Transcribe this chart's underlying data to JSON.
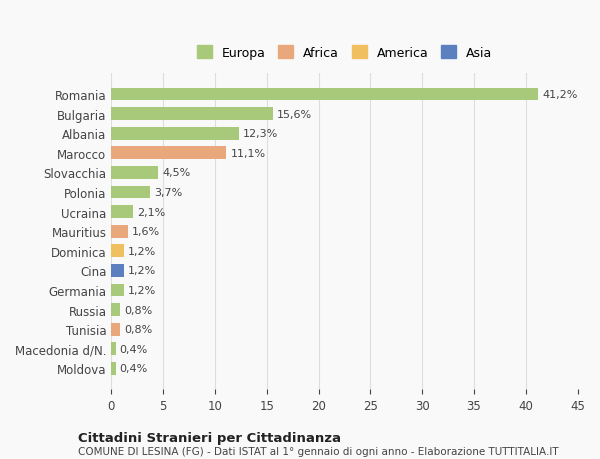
{
  "categories": [
    "Romania",
    "Bulgaria",
    "Albania",
    "Marocco",
    "Slovacchia",
    "Polonia",
    "Ucraina",
    "Mauritius",
    "Dominica",
    "Cina",
    "Germania",
    "Russia",
    "Tunisia",
    "Macedonia d/N.",
    "Moldova"
  ],
  "values": [
    41.2,
    15.6,
    12.3,
    11.1,
    4.5,
    3.7,
    2.1,
    1.6,
    1.2,
    1.2,
    1.2,
    0.8,
    0.8,
    0.4,
    0.4
  ],
  "labels": [
    "41,2%",
    "15,6%",
    "12,3%",
    "11,1%",
    "4,5%",
    "3,7%",
    "2,1%",
    "1,6%",
    "1,2%",
    "1,2%",
    "1,2%",
    "0,8%",
    "0,8%",
    "0,4%",
    "0,4%"
  ],
  "colors": [
    "#a8c87a",
    "#a8c87a",
    "#a8c87a",
    "#e8a87c",
    "#a8c87a",
    "#a8c87a",
    "#a8c87a",
    "#e8a87c",
    "#f0c060",
    "#5b7fbf",
    "#a8c87a",
    "#a8c87a",
    "#e8a87c",
    "#a8c87a",
    "#a8c87a"
  ],
  "continent": [
    "Europa",
    "Europa",
    "Europa",
    "Africa",
    "Europa",
    "Europa",
    "Europa",
    "Africa",
    "America",
    "Asia",
    "Europa",
    "Europa",
    "Africa",
    "Europa",
    "Europa"
  ],
  "legend_labels": [
    "Europa",
    "Africa",
    "America",
    "Asia"
  ],
  "legend_colors": [
    "#a8c87a",
    "#e8a87c",
    "#f0c060",
    "#5b7fbf"
  ],
  "title": "Cittadini Stranieri per Cittadinanza",
  "subtitle": "COMUNE DI LESINA (FG) - Dati ISTAT al 1° gennaio di ogni anno - Elaborazione TUTTITALIA.IT",
  "xlim": [
    0,
    45
  ],
  "xticks": [
    0,
    5,
    10,
    15,
    20,
    25,
    30,
    35,
    40,
    45
  ],
  "bg_color": "#f9f9f9",
  "bar_bg": "#ffffff",
  "grid_color": "#dddddd"
}
